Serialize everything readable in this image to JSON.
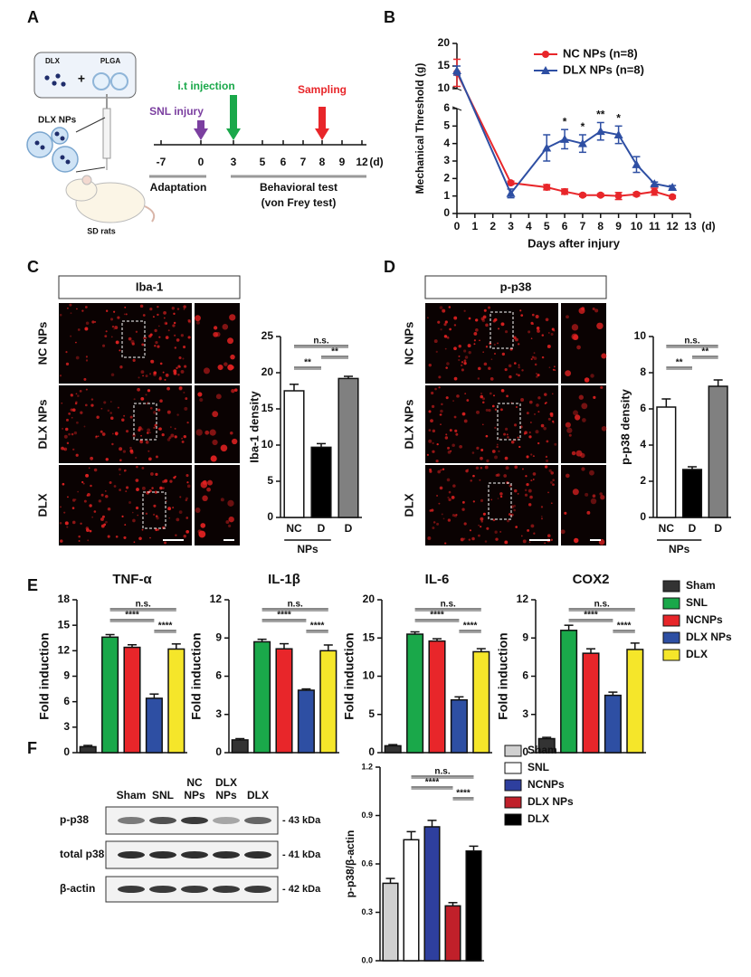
{
  "panel_labels": [
    "A",
    "B",
    "C",
    "D",
    "E",
    "F"
  ],
  "panel_A": {
    "box_labels": [
      "DLX",
      "PLGA"
    ],
    "plus": "+",
    "np_label": "DLX NPs",
    "animal": "SD rats",
    "events": [
      {
        "label": "SNL injury",
        "color": "#7b3fa0"
      },
      {
        "label": "i.t injection",
        "color": "#1aa84a"
      },
      {
        "label": "Sampling",
        "color": "#e8262a"
      }
    ],
    "timeline": [
      "-7",
      "0",
      "3",
      "5",
      "6",
      "7",
      "8",
      "9",
      "12"
    ],
    "unit": "(d)",
    "periods": [
      "Adaptation",
      "Behavioral test",
      "(von Frey test)"
    ]
  },
  "panel_C_images": {
    "header": "Iba-1",
    "rows": [
      "NC NPs",
      "DLX NPs",
      "DLX"
    ]
  },
  "panel_D_images": {
    "header": "p-p38",
    "rows": [
      "NC NPs",
      "DLX NPs",
      "DLX"
    ]
  },
  "panel_E_legend": {
    "labels": [
      "Sham",
      "SNL",
      "NCNPs",
      "DLX NPs",
      "DLX"
    ],
    "colors": [
      "#333333",
      "#1aa84a",
      "#e8262a",
      "#2e4fa3",
      "#f5e62a"
    ]
  },
  "panel_F_blot": {
    "lanes": [
      [
        "Sham"
      ],
      [
        "SNL"
      ],
      [
        "NC",
        "NPs"
      ],
      [
        "DLX",
        "NPs"
      ],
      [
        "DLX"
      ]
    ],
    "rows": [
      "p-p38",
      "total p38",
      "β-actin"
    ],
    "sizes": [
      "- 43 kDa",
      "- 41 kDa",
      "- 42 kDa"
    ]
  },
  "chart_data": [
    {
      "type": "line",
      "ylabel": "Mechanical Threshold (g)",
      "xlabel": "Days after injury",
      "xunit": "(d)",
      "x": [
        0,
        3,
        5,
        6,
        7,
        8,
        9,
        10,
        11,
        12
      ],
      "xlim": [
        0,
        13
      ],
      "xticks": [
        0,
        1,
        2,
        3,
        4,
        5,
        6,
        7,
        8,
        9,
        10,
        11,
        12,
        13
      ],
      "ylim": [
        0,
        20
      ],
      "ybreak": [
        6,
        10
      ],
      "yticks": [
        0,
        1,
        2,
        3,
        4,
        5,
        6,
        10,
        15,
        20
      ],
      "series": [
        {
          "name": "NC NPs (n=8)",
          "color": "#e8262a",
          "marker": "circle",
          "values": [
            13.5,
            1.75,
            1.5,
            1.25,
            1.05,
            1.05,
            1.0,
            1.1,
            1.25,
            0.95
          ],
          "errors": [
            3,
            0.1,
            0.15,
            0.15,
            0.08,
            0.08,
            0.2,
            0.1,
            0.2,
            0.08
          ]
        },
        {
          "name": "DLX NPs (n=8)",
          "color": "#2e4fa3",
          "marker": "triangle",
          "values": [
            14,
            1.15,
            3.75,
            4.25,
            4.0,
            4.7,
            4.5,
            2.8,
            1.7,
            1.5
          ],
          "errors": [
            1,
            0.25,
            0.75,
            0.55,
            0.5,
            0.5,
            0.5,
            0.45,
            0.1,
            0.1
          ]
        }
      ],
      "annotations": [
        {
          "x": 6,
          "text": "*"
        },
        {
          "x": 7,
          "text": "*"
        },
        {
          "x": 8,
          "text": "**"
        },
        {
          "x": 9,
          "text": "*"
        }
      ]
    },
    {
      "type": "bar",
      "ylabel": "Iba-1 density",
      "categories": [
        "NC",
        "D",
        "D"
      ],
      "group_label": "NPs",
      "values": [
        17.5,
        9.7,
        19.2
      ],
      "errors": [
        0.9,
        0.5,
        0.3
      ],
      "colors": [
        "#ffffff",
        "#000000",
        "#808080"
      ],
      "ylim": [
        0,
        25
      ],
      "yticks": [
        0,
        5,
        10,
        15,
        20,
        25
      ],
      "significance": [
        {
          "text": "n.s.",
          "pair": [
            0,
            2
          ]
        },
        {
          "text": "**",
          "pair": [
            1,
            2
          ]
        },
        {
          "text": "**",
          "pair": [
            0,
            1
          ]
        }
      ]
    },
    {
      "type": "bar",
      "ylabel": "p-p38 density",
      "categories": [
        "NC",
        "D",
        "D"
      ],
      "group_label": "NPs",
      "values": [
        6.1,
        2.65,
        7.25
      ],
      "errors": [
        0.45,
        0.15,
        0.35
      ],
      "colors": [
        "#ffffff",
        "#000000",
        "#808080"
      ],
      "ylim": [
        0,
        10
      ],
      "yticks": [
        0,
        2,
        4,
        6,
        8,
        10
      ],
      "significance": [
        {
          "text": "n.s.",
          "pair": [
            0,
            2
          ]
        },
        {
          "text": "**",
          "pair": [
            1,
            2
          ]
        },
        {
          "text": "**",
          "pair": [
            0,
            1
          ]
        }
      ]
    },
    {
      "type": "bar",
      "title": "TNF-α",
      "ylabel": "Fold induction",
      "values": [
        0.7,
        13.6,
        12.4,
        6.4,
        12.2
      ],
      "errors": [
        0.15,
        0.3,
        0.3,
        0.5,
        0.6
      ],
      "ylim": [
        0,
        18
      ],
      "yticks": [
        0,
        3,
        6,
        9,
        12,
        15,
        18
      ],
      "significance": [
        {
          "text": "n.s.",
          "pair": [
            1,
            4
          ]
        },
        {
          "text": "****",
          "pair": [
            1,
            3
          ]
        },
        {
          "text": "****",
          "pair": [
            3,
            4
          ]
        }
      ]
    },
    {
      "type": "bar",
      "title": "IL-1β",
      "ylabel": "Fold induction",
      "values": [
        1.0,
        8.7,
        8.15,
        4.9,
        8.0
      ],
      "errors": [
        0.1,
        0.2,
        0.4,
        0.1,
        0.45
      ],
      "ylim": [
        0,
        12
      ],
      "yticks": [
        0,
        3,
        6,
        9,
        12
      ],
      "significance": [
        {
          "text": "n.s.",
          "pair": [
            1,
            4
          ]
        },
        {
          "text": "****",
          "pair": [
            1,
            3
          ]
        },
        {
          "text": "****",
          "pair": [
            3,
            4
          ]
        }
      ]
    },
    {
      "type": "bar",
      "title": "IL-6",
      "ylabel": "Fold induction",
      "values": [
        0.9,
        15.5,
        14.6,
        6.9,
        13.2
      ],
      "errors": [
        0.15,
        0.3,
        0.3,
        0.4,
        0.4
      ],
      "ylim": [
        0,
        20
      ],
      "yticks": [
        0,
        5,
        10,
        15,
        20
      ],
      "significance": [
        {
          "text": "n.s.",
          "pair": [
            1,
            4
          ]
        },
        {
          "text": "****",
          "pair": [
            1,
            3
          ]
        },
        {
          "text": "****",
          "pair": [
            3,
            4
          ]
        }
      ]
    },
    {
      "type": "bar",
      "title": "COX2",
      "ylabel": "Fold induction",
      "values": [
        1.1,
        9.6,
        7.8,
        4.5,
        8.1
      ],
      "errors": [
        0.1,
        0.4,
        0.35,
        0.25,
        0.5
      ],
      "ylim": [
        0,
        12
      ],
      "yticks": [
        0,
        3,
        6,
        9,
        12
      ],
      "significance": [
        {
          "text": "n.s.",
          "pair": [
            1,
            4
          ]
        },
        {
          "text": "****",
          "pair": [
            1,
            3
          ]
        },
        {
          "text": "****",
          "pair": [
            3,
            4
          ]
        }
      ]
    },
    {
      "type": "bar",
      "ylabel": "p-p38/β-actin",
      "legend": true,
      "categories": [
        "Sham",
        "SNL",
        "NCNPs",
        "DLX NPs",
        "DLX"
      ],
      "colors": [
        "#d0d0d0",
        "#ffffff",
        "#2e3f9e",
        "#c0202a",
        "#000000"
      ],
      "values": [
        0.48,
        0.75,
        0.83,
        0.34,
        0.68
      ],
      "errors": [
        0.03,
        0.05,
        0.04,
        0.02,
        0.03
      ],
      "ylim": [
        0,
        1.2
      ],
      "yticks": [
        {
          "value": 0,
          "label": "0.0"
        },
        0.3,
        0.6,
        0.9,
        1.2
      ],
      "significance": [
        {
          "text": "n.s.",
          "pair": [
            1,
            4
          ]
        },
        {
          "text": "****",
          "pair": [
            1,
            3
          ]
        },
        {
          "text": "****",
          "pair": [
            3,
            4
          ]
        }
      ]
    }
  ]
}
